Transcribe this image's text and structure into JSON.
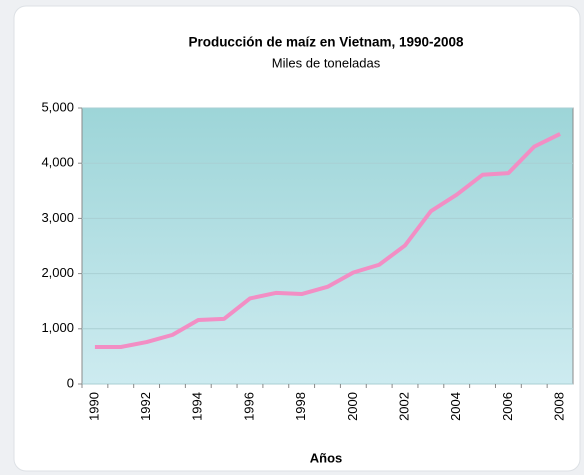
{
  "chart_data": {
    "type": "line",
    "title": "Producción de maíz en Vietnam, 1990-2008",
    "subtitle": "Miles de toneladas",
    "x_label": "Años",
    "categories": [
      "1990",
      null,
      "1992",
      null,
      "1994",
      null,
      "1996",
      null,
      "1998",
      null,
      "2000",
      null,
      "2002",
      null,
      "2004",
      null,
      "2006",
      null,
      "2008"
    ],
    "series": [
      {
        "name": "Producción",
        "color": "#f28ec4",
        "values": [
          670,
          670,
          760,
          890,
          1160,
          1180,
          1550,
          1650,
          1630,
          1760,
          2020,
          2160,
          2510,
          3130,
          3430,
          3790,
          3820,
          4300,
          4530
        ]
      }
    ],
    "ylim": [
      0,
      5000
    ],
    "yticks": [
      0,
      {
        "value": 1000,
        "label": "1,000"
      },
      {
        "value": 2000,
        "label": "2,000"
      },
      {
        "value": 3000,
        "label": "3,000"
      },
      {
        "value": 4000,
        "label": "4,000"
      },
      {
        "value": 5000,
        "label": "5,000"
      }
    ],
    "grid": true
  }
}
